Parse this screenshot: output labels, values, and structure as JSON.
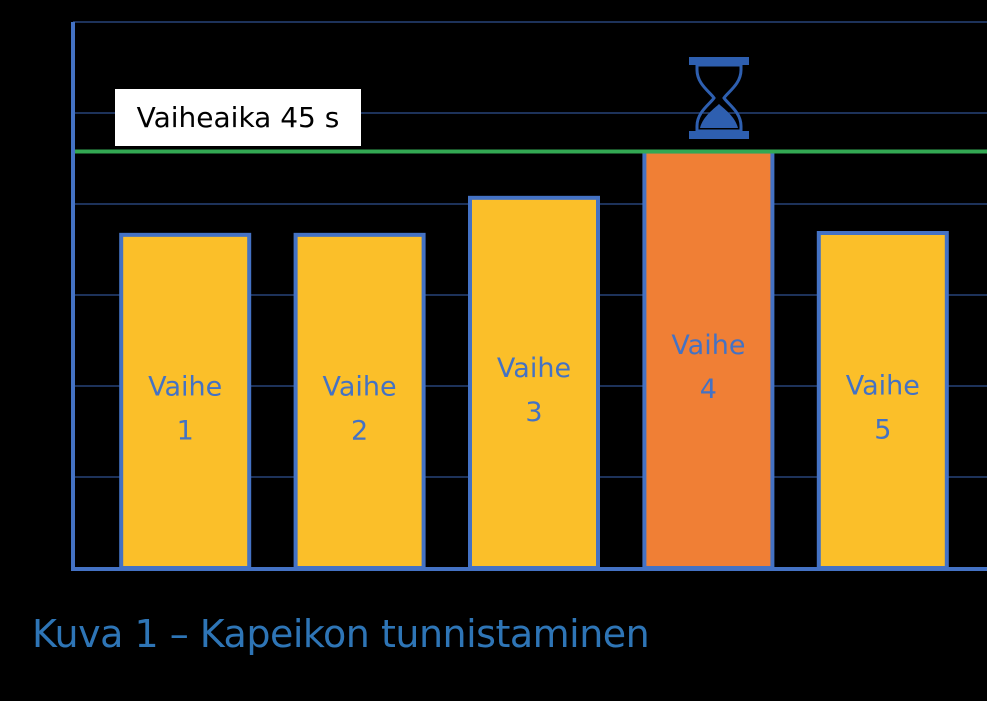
{
  "chart_data": {
    "type": "bar",
    "categories": [
      "Vaihe\n1",
      "Vaihe\n2",
      "Vaihe\n3",
      "Vaihe\n4",
      "Vaihe\n5"
    ],
    "values": [
      36,
      36,
      40,
      45,
      36.2
    ],
    "highlight_index": 3,
    "ylim": [
      0,
      59
    ],
    "reference_line": {
      "value": 45,
      "label": "Vaiheaika 45 s",
      "color": "#33a853"
    },
    "grid": true,
    "colors": {
      "bar": "#fbbf29",
      "highlight": "#f07f35",
      "outline": "#4472c4",
      "axis": "#4472c4",
      "gridline": "#2f4f8f",
      "background": "#000000",
      "hourglass": "#2e5fb0"
    },
    "icons": [
      "hourglass-icon"
    ]
  },
  "caption": "Kuva 1 – Kapeikon tunnistaminen"
}
